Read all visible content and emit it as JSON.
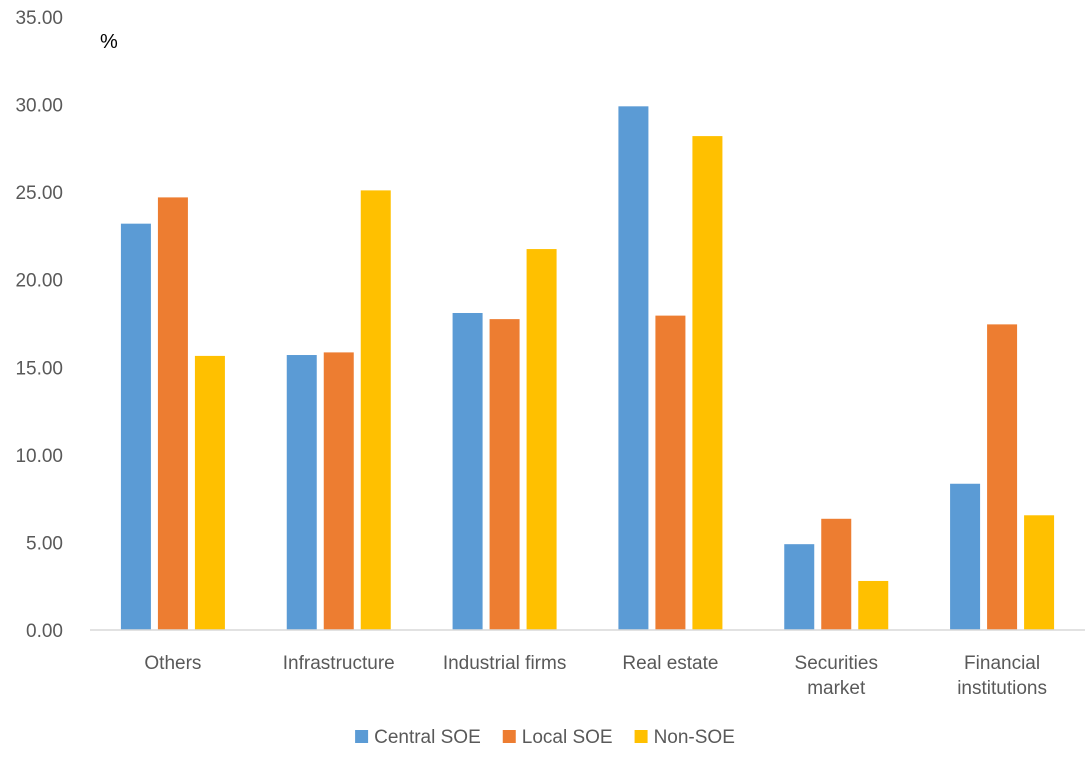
{
  "chart_data": {
    "type": "bar",
    "ylabel": "%",
    "ylim": [
      0,
      35
    ],
    "yticks": [
      "0.00",
      "5.00",
      "10.00",
      "15.00",
      "20.00",
      "25.00",
      "30.00",
      "35.00"
    ],
    "grid": false,
    "legend_position": "bottom",
    "categories": [
      [
        "Others"
      ],
      [
        "Infrastructure"
      ],
      [
        "Industrial firms"
      ],
      [
        "Real estate"
      ],
      [
        "Securities",
        "market"
      ],
      [
        "Financial",
        "institutions"
      ]
    ],
    "series": [
      {
        "name": "Central SOE",
        "color": "#5B9BD5",
        "values": [
          23.2,
          15.7,
          18.1,
          29.9,
          4.9,
          8.35
        ]
      },
      {
        "name": "Local SOE",
        "color": "#ED7D31",
        "values": [
          24.7,
          15.85,
          17.75,
          17.95,
          6.35,
          17.45
        ]
      },
      {
        "name": "Non-SOE",
        "color": "#FFC000",
        "values": [
          15.65,
          25.1,
          21.75,
          28.2,
          2.8,
          6.55
        ]
      }
    ]
  }
}
